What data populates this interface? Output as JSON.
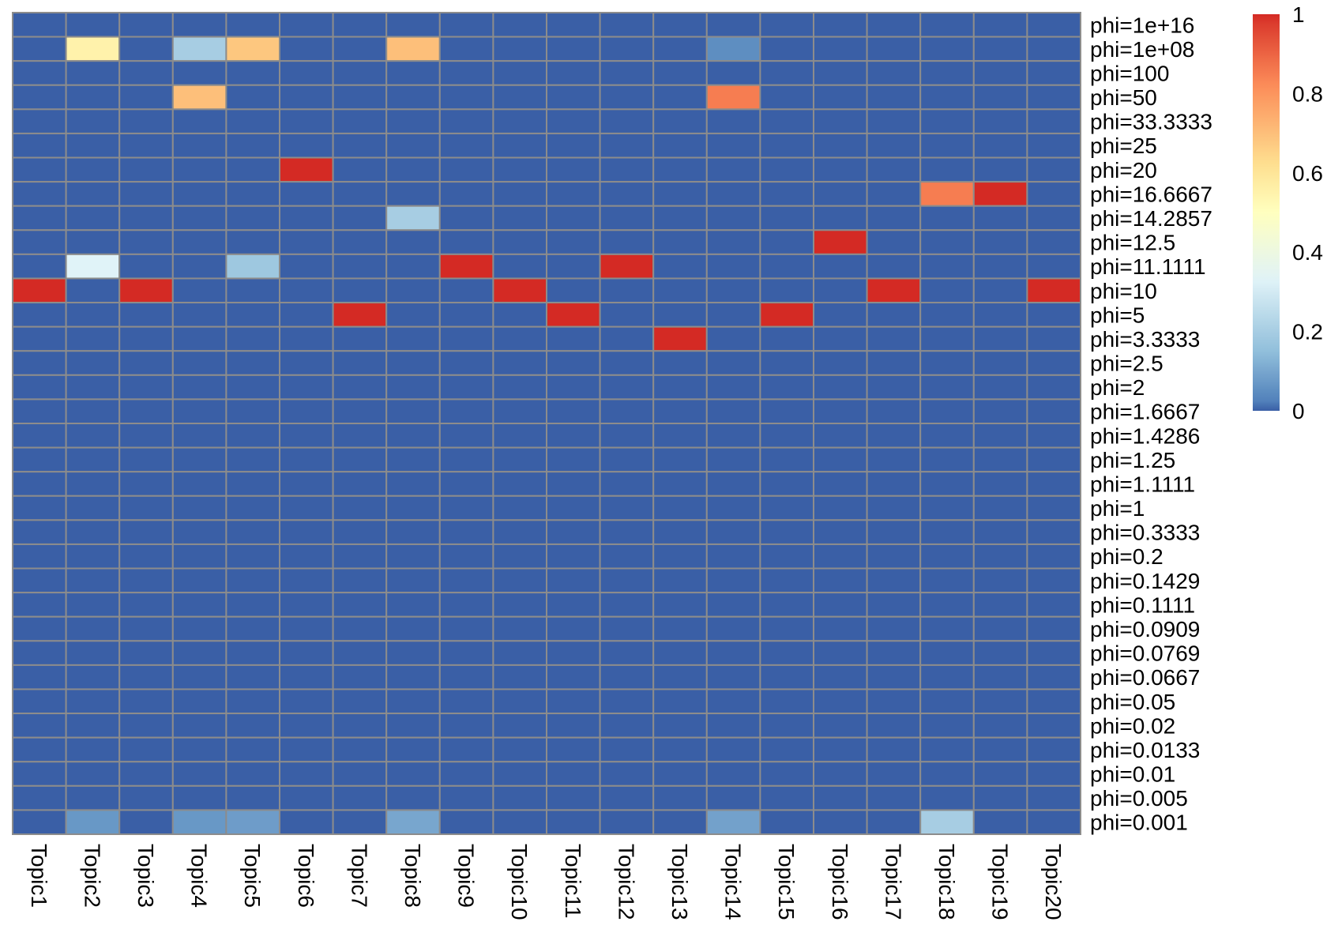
{
  "chart_data": {
    "type": "heatmap",
    "title": "",
    "xlabel": "",
    "ylabel": "",
    "columns": [
      "Topic1",
      "Topic2",
      "Topic3",
      "Topic4",
      "Topic5",
      "Topic6",
      "Topic7",
      "Topic8",
      "Topic9",
      "Topic10",
      "Topic11",
      "Topic12",
      "Topic13",
      "Topic14",
      "Topic15",
      "Topic16",
      "Topic17",
      "Topic18",
      "Topic19",
      "Topic20"
    ],
    "rows": [
      "phi=1e+16",
      "phi=1e+08",
      "phi=100",
      "phi=50",
      "phi=33.3333",
      "phi=25",
      "phi=20",
      "phi=16.6667",
      "phi=14.2857",
      "phi=12.5",
      "phi=11.1111",
      "phi=10",
      "phi=5",
      "phi=3.3333",
      "phi=2.5",
      "phi=2",
      "phi=1.6667",
      "phi=1.4286",
      "phi=1.25",
      "phi=1.1111",
      "phi=1",
      "phi=0.3333",
      "phi=0.2",
      "phi=0.1429",
      "phi=0.1111",
      "phi=0.0909",
      "phi=0.0769",
      "phi=0.0667",
      "phi=0.05",
      "phi=0.02",
      "phi=0.0133",
      "phi=0.01",
      "phi=0.005",
      "phi=0.001"
    ],
    "values": [
      [
        0,
        0,
        0,
        0,
        0,
        0,
        0,
        0,
        0,
        0,
        0,
        0,
        0,
        0,
        0,
        0,
        0,
        0,
        0,
        0
      ],
      [
        0,
        0.55,
        0,
        0.2,
        0.68,
        0,
        0,
        0.7,
        0,
        0,
        0,
        0,
        0,
        0.05,
        0,
        0,
        0,
        0,
        0,
        0
      ],
      [
        0,
        0,
        0,
        0,
        0,
        0,
        0,
        0,
        0,
        0,
        0,
        0,
        0,
        0,
        0,
        0,
        0,
        0,
        0,
        0
      ],
      [
        0,
        0,
        0,
        0.7,
        0,
        0,
        0,
        0,
        0,
        0,
        0,
        0,
        0,
        0.85,
        0,
        0,
        0,
        0,
        0,
        0
      ],
      [
        0,
        0,
        0,
        0,
        0,
        0,
        0,
        0,
        0,
        0,
        0,
        0,
        0,
        0,
        0,
        0,
        0,
        0,
        0,
        0
      ],
      [
        0,
        0,
        0,
        0,
        0,
        0,
        0,
        0,
        0,
        0,
        0,
        0,
        0,
        0,
        0,
        0,
        0,
        0,
        0,
        0
      ],
      [
        0,
        0,
        0,
        0,
        0,
        1,
        0,
        0,
        0,
        0,
        0,
        0,
        0,
        0,
        0,
        0,
        0,
        0,
        0,
        0
      ],
      [
        0,
        0,
        0,
        0,
        0,
        0,
        0,
        0,
        0,
        0,
        0,
        0,
        0,
        0,
        0,
        0,
        0,
        0.85,
        1,
        0
      ],
      [
        0,
        0,
        0,
        0,
        0,
        0,
        0,
        0.2,
        0,
        0,
        0,
        0,
        0,
        0,
        0,
        0,
        0,
        0,
        0,
        0
      ],
      [
        0,
        0,
        0,
        0,
        0,
        0,
        0,
        0,
        0,
        0,
        0,
        0,
        0,
        0,
        0,
        1,
        0,
        0,
        0,
        0
      ],
      [
        0,
        0.33,
        0,
        0,
        0.18,
        0,
        0,
        0,
        1,
        0,
        0,
        1,
        0,
        0,
        0,
        0,
        0,
        0,
        0,
        0
      ],
      [
        1,
        0,
        1,
        0,
        0,
        0,
        0,
        0,
        0,
        1,
        0,
        0,
        0,
        0,
        0,
        0,
        1,
        0,
        0,
        1
      ],
      [
        0,
        0,
        0,
        0,
        0,
        0,
        1,
        0,
        0,
        0,
        1,
        0,
        0,
        0,
        1,
        0,
        0,
        0,
        0,
        0
      ],
      [
        0,
        0,
        0,
        0,
        0,
        0,
        0,
        0,
        0,
        0,
        0,
        0,
        1,
        0,
        0,
        0,
        0,
        0,
        0,
        0
      ],
      [
        0,
        0,
        0,
        0,
        0,
        0,
        0,
        0,
        0,
        0,
        0,
        0,
        0,
        0,
        0,
        0,
        0,
        0,
        0,
        0
      ],
      [
        0,
        0,
        0,
        0,
        0,
        0,
        0,
        0,
        0,
        0,
        0,
        0,
        0,
        0,
        0,
        0,
        0,
        0,
        0,
        0
      ],
      [
        0,
        0,
        0,
        0,
        0,
        0,
        0,
        0,
        0,
        0,
        0,
        0,
        0,
        0,
        0,
        0,
        0,
        0,
        0,
        0
      ],
      [
        0,
        0,
        0,
        0,
        0,
        0,
        0,
        0,
        0,
        0,
        0,
        0,
        0,
        0,
        0,
        0,
        0,
        0,
        0,
        0
      ],
      [
        0,
        0,
        0,
        0,
        0,
        0,
        0,
        0,
        0,
        0,
        0,
        0,
        0,
        0,
        0,
        0,
        0,
        0,
        0,
        0
      ],
      [
        0,
        0,
        0,
        0,
        0,
        0,
        0,
        0,
        0,
        0,
        0,
        0,
        0,
        0,
        0,
        0,
        0,
        0,
        0,
        0
      ],
      [
        0,
        0,
        0,
        0,
        0,
        0,
        0,
        0,
        0,
        0,
        0,
        0,
        0,
        0,
        0,
        0,
        0,
        0,
        0,
        0
      ],
      [
        0,
        0,
        0,
        0,
        0,
        0,
        0,
        0,
        0,
        0,
        0,
        0,
        0,
        0,
        0,
        0,
        0,
        0,
        0,
        0
      ],
      [
        0,
        0,
        0,
        0,
        0,
        0,
        0,
        0,
        0,
        0,
        0,
        0,
        0,
        0,
        0,
        0,
        0,
        0,
        0,
        0
      ],
      [
        0,
        0,
        0,
        0,
        0,
        0,
        0,
        0,
        0,
        0,
        0,
        0,
        0,
        0,
        0,
        0,
        0,
        0,
        0,
        0
      ],
      [
        0,
        0,
        0,
        0,
        0,
        0,
        0,
        0,
        0,
        0,
        0,
        0,
        0,
        0,
        0,
        0,
        0,
        0,
        0,
        0
      ],
      [
        0,
        0,
        0,
        0,
        0,
        0,
        0,
        0,
        0,
        0,
        0,
        0,
        0,
        0,
        0,
        0,
        0,
        0,
        0,
        0
      ],
      [
        0,
        0,
        0,
        0,
        0,
        0,
        0,
        0,
        0,
        0,
        0,
        0,
        0,
        0,
        0,
        0,
        0,
        0,
        0,
        0
      ],
      [
        0,
        0,
        0,
        0,
        0,
        0,
        0,
        0,
        0,
        0,
        0,
        0,
        0,
        0,
        0,
        0,
        0,
        0,
        0,
        0
      ],
      [
        0,
        0,
        0,
        0,
        0,
        0,
        0,
        0,
        0,
        0,
        0,
        0,
        0,
        0,
        0,
        0,
        0,
        0,
        0,
        0
      ],
      [
        0,
        0,
        0,
        0,
        0,
        0,
        0,
        0,
        0,
        0,
        0,
        0,
        0,
        0,
        0,
        0,
        0,
        0,
        0,
        0
      ],
      [
        0,
        0,
        0,
        0,
        0,
        0,
        0,
        0,
        0,
        0,
        0,
        0,
        0,
        0,
        0,
        0,
        0,
        0,
        0,
        0
      ],
      [
        0,
        0,
        0,
        0,
        0,
        0,
        0,
        0,
        0,
        0,
        0,
        0,
        0,
        0,
        0,
        0,
        0,
        0,
        0,
        0
      ],
      [
        0,
        0,
        0,
        0,
        0,
        0,
        0,
        0,
        0,
        0,
        0,
        0,
        0,
        0,
        0,
        0,
        0,
        0,
        0,
        0
      ],
      [
        0,
        0.07,
        0,
        0.07,
        0.08,
        0,
        0,
        0.1,
        0,
        0,
        0,
        0,
        0,
        0.09,
        0,
        0,
        0,
        0.2,
        0,
        0
      ]
    ],
    "color_scale": {
      "range": [
        0,
        1
      ],
      "ticks": [
        "0",
        "0.2",
        "0.4",
        "0.6",
        "0.8",
        "1"
      ],
      "palette": [
        "#4575b4",
        "#91bfdb",
        "#e0f3f8",
        "#ffffbf",
        "#fee090",
        "#fc8d59",
        "#d73027"
      ],
      "stops": [
        0,
        0.15,
        0.33,
        0.5,
        0.62,
        0.82,
        1
      ],
      "low_color": "#3a5fa6",
      "high_color": "#d42a24"
    },
    "grid_color": "#8c8c8c",
    "legend_position": "top-right"
  }
}
